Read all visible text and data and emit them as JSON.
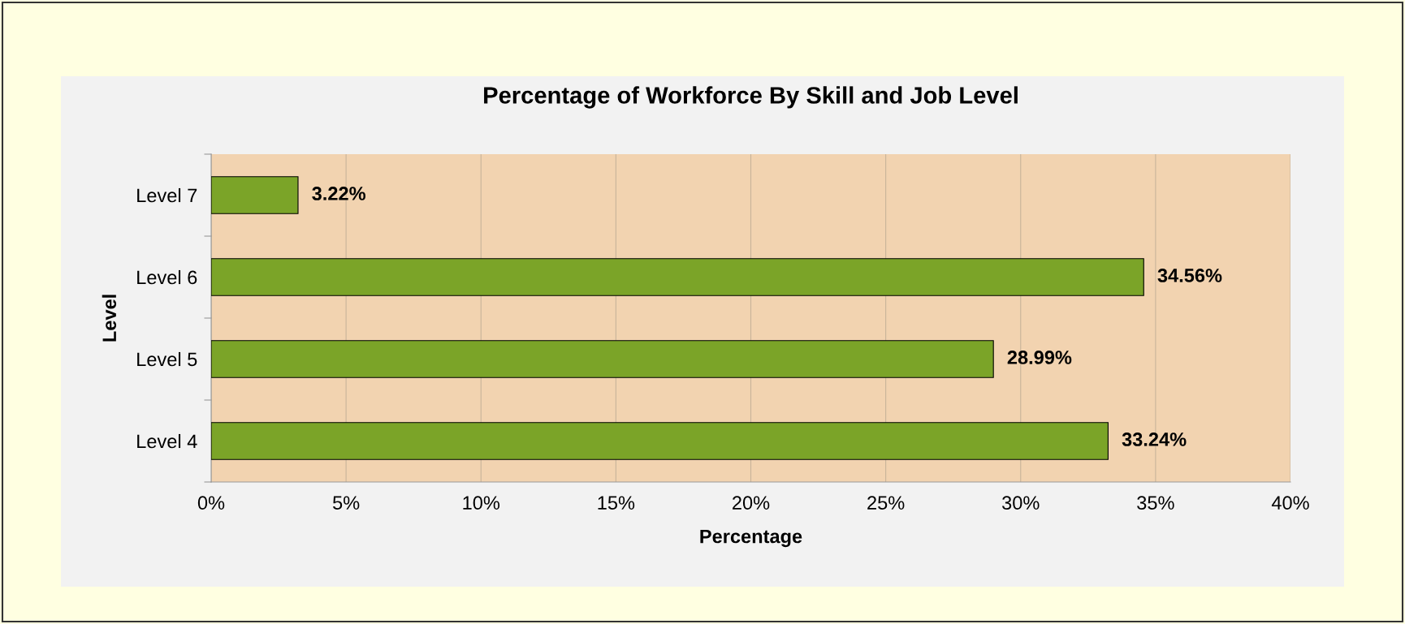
{
  "chart_data": {
    "type": "bar",
    "orientation": "horizontal",
    "title": "Percentage of Workforce By Skill and Job Level",
    "xlabel": "Percentage",
    "ylabel": "Level",
    "categories": [
      "Level 7",
      "Level 6",
      "Level 5",
      "Level 4"
    ],
    "values": [
      3.22,
      34.56,
      28.99,
      33.24
    ],
    "color": "#7ba428",
    "value_labels": [
      "3.22%",
      "34.56%",
      "28.99%",
      "33.24%"
    ],
    "xlim": [
      0,
      40
    ],
    "xticks": [
      {
        "value": 0,
        "label": "0%"
      },
      {
        "value": 5,
        "label": "5%"
      },
      {
        "value": 10,
        "label": "10%"
      },
      {
        "value": 15,
        "label": "15%"
      },
      {
        "value": 20,
        "label": "20%"
      },
      {
        "value": 25,
        "label": "25%"
      },
      {
        "value": 30,
        "label": "30%"
      },
      {
        "value": 35,
        "label": "35%"
      },
      {
        "value": 40,
        "label": "40%"
      }
    ],
    "grid": "x"
  }
}
